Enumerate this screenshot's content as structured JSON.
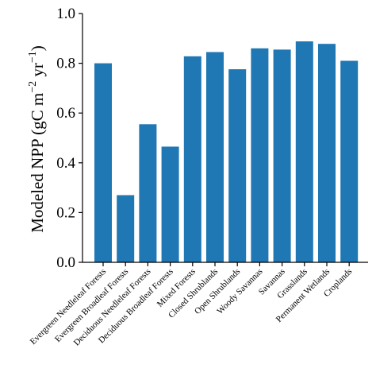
{
  "chart_data": {
    "type": "bar",
    "categories": [
      "Evergreen Needleleaf Forests",
      "Evergreen Broadleaf Forests",
      "Deciduous Needleleaf Forests",
      "Deciduous Broadleaf Forests",
      "Mixed Forests",
      "Closed Shrublands",
      "Open Shrublands",
      "Woody Savannas",
      "Savannas",
      "Grasslands",
      "Permanent Wetlands",
      "Croplands"
    ],
    "values": [
      0.8,
      0.27,
      0.555,
      0.465,
      0.828,
      0.845,
      0.776,
      0.86,
      0.855,
      0.888,
      0.878,
      0.81
    ],
    "ylabel": {
      "main": "Modeled NPP (gC m",
      "sup1": "−2",
      "mid": " yr",
      "sup2": "−1",
      "end": ")"
    },
    "xlabel": "",
    "ylim": [
      0.0,
      1.0
    ],
    "yticks": [
      "0.0",
      "0.2",
      "0.4",
      "0.6",
      "0.8",
      "1.0"
    ],
    "bar_color": "#1f77b4",
    "grid": false,
    "legend": "none"
  }
}
